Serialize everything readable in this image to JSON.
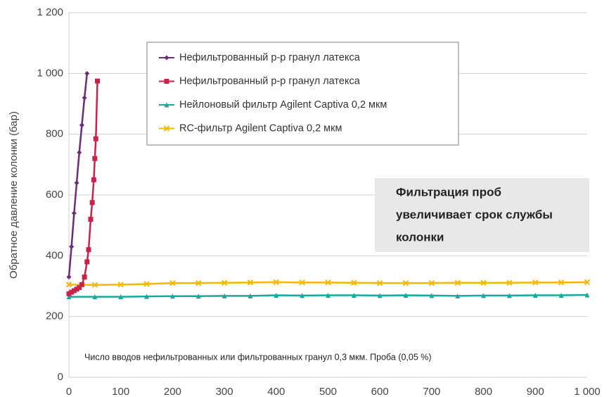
{
  "chart_data": {
    "type": "line",
    "y_label": "Обратное давление колонки (бар)",
    "x_note": "Число вводов нефильтрованных или фильтрованных гранул 0,3 мкм.  Проба (0,05 %)",
    "annotation": [
      "Фильтрация проб",
      "увеличивает срок службы",
      "колонки"
    ],
    "xlim": [
      0,
      1000
    ],
    "ylim": [
      0,
      1200
    ],
    "xticks": [
      0,
      100,
      200,
      300,
      400,
      500,
      600,
      700,
      800,
      900,
      {
        "value": 1000,
        "label": "1 000"
      }
    ],
    "yticks": [
      0,
      200,
      400,
      600,
      800,
      {
        "value": 1000,
        "label": "1 000"
      },
      {
        "value": 1200,
        "label": "1 200"
      }
    ],
    "grid": true,
    "series": [
      {
        "name": "Нефильтрованный р-р гранул латекса",
        "color": "#6b2d7b",
        "marker": "diamond",
        "x": [
          0,
          5,
          10,
          15,
          20,
          25,
          30,
          35
        ],
        "values": [
          330,
          430,
          540,
          640,
          740,
          830,
          920,
          1000
        ]
      },
      {
        "name": "Нефильтрованный р-р гранул латекса",
        "color": "#c8234a",
        "marker": "square",
        "x": [
          0,
          5,
          10,
          15,
          20,
          25,
          30,
          35,
          38,
          42,
          45,
          48,
          50,
          52,
          55
        ],
        "values": [
          275,
          280,
          285,
          290,
          295,
          305,
          330,
          380,
          420,
          520,
          575,
          650,
          720,
          785,
          975
        ]
      },
      {
        "name": "Нейлоновый фильтр Agilent Captiva 0,2 мкм",
        "color": "#1aa79e",
        "marker": "triangle",
        "x": [
          0,
          50,
          100,
          150,
          200,
          250,
          300,
          350,
          400,
          450,
          500,
          550,
          600,
          650,
          700,
          750,
          800,
          850,
          900,
          950,
          1000
        ],
        "values": [
          265,
          265,
          265,
          266,
          267,
          267,
          268,
          268,
          270,
          269,
          270,
          270,
          269,
          270,
          269,
          268,
          269,
          269,
          270,
          270,
          271
        ]
      },
      {
        "name": "RC-фильтр Agilent Captiva 0,2 мкм",
        "color": "#f5b800",
        "marker": "x",
        "x": [
          0,
          50,
          100,
          150,
          200,
          250,
          300,
          350,
          400,
          450,
          500,
          550,
          600,
          650,
          700,
          750,
          800,
          850,
          900,
          950,
          1000
        ],
        "values": [
          305,
          304,
          305,
          307,
          310,
          310,
          311,
          312,
          313,
          312,
          312,
          311,
          310,
          310,
          310,
          311,
          311,
          311,
          312,
          312,
          313
        ]
      }
    ]
  }
}
